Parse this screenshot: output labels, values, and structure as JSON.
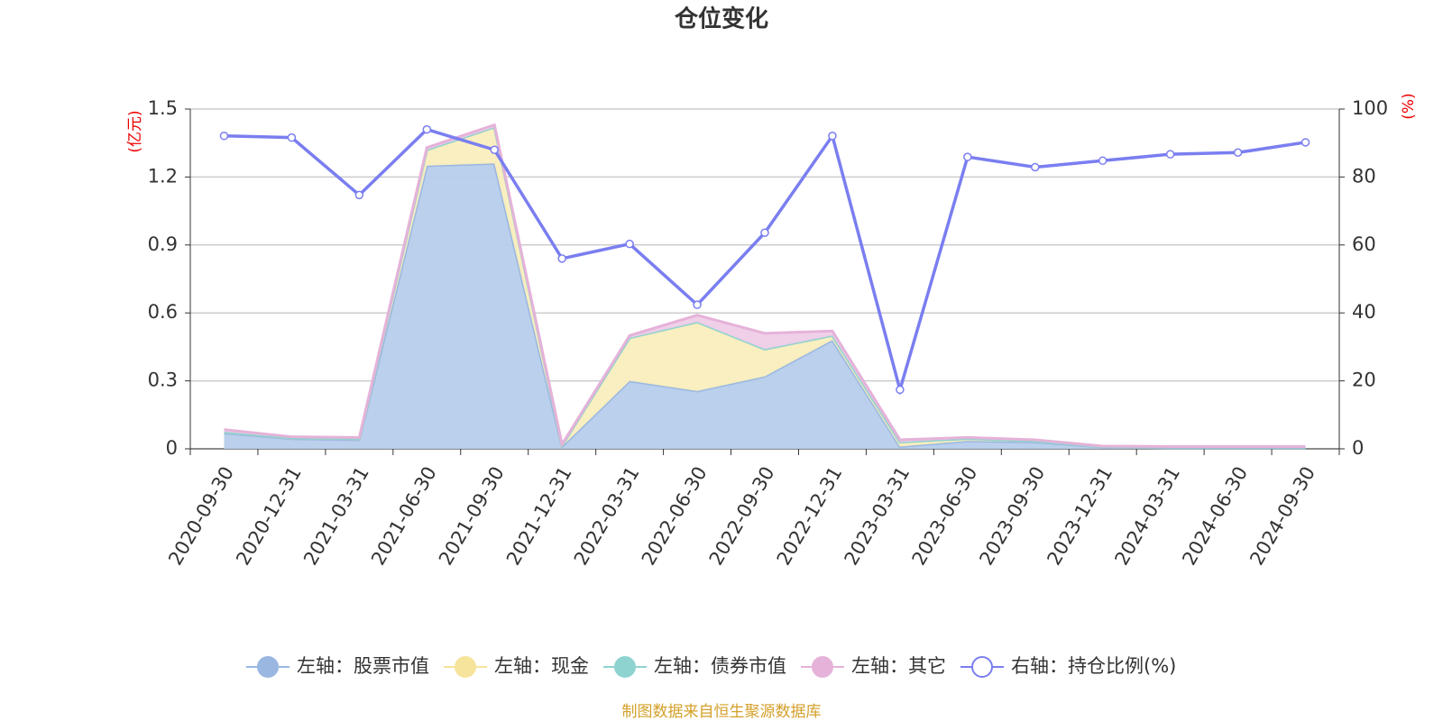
{
  "chart_data": {
    "type": "stacked-area-line",
    "title": "仓位变化",
    "ylabel": "(亿元)",
    "y2label": "(%)",
    "source": "制图数据来自恒生聚源数据库",
    "categories": [
      "2020-09-30",
      "2020-12-31",
      "2021-03-31",
      "2021-06-30",
      "2021-09-30",
      "2021-12-31",
      "2022-03-31",
      "2022-06-30",
      "2022-09-30",
      "2022-12-31",
      "2023-03-31",
      "2023-06-30",
      "2023-09-30",
      "2023-12-31",
      "2024-03-31",
      "2024-06-30",
      "2024-09-30"
    ],
    "series": [
      {
        "name": "左轴：股票市值",
        "color": "#9ab7e2",
        "fill": "#b6cdeb",
        "values": [
          0.07,
          0.045,
          0.04,
          1.25,
          1.26,
          0.01,
          0.3,
          0.255,
          0.32,
          0.48,
          0.01,
          0.035,
          0.03,
          0.008,
          0.005,
          0.005,
          0.005
        ]
      },
      {
        "name": "左轴：现金",
        "color": "#f7e49c",
        "fill": "#faeebd",
        "values": [
          0.005,
          0.003,
          0.005,
          0.07,
          0.16,
          0.005,
          0.19,
          0.305,
          0.12,
          0.02,
          0.02,
          0.01,
          0.005,
          0.002,
          0.003,
          0.003,
          0.003
        ]
      },
      {
        "name": "左轴：债券市值",
        "color": "#8fd3d0",
        "fill": "#b5e3e1",
        "values": [
          0,
          0,
          0,
          0,
          0,
          0,
          0,
          0,
          0,
          0,
          0,
          0,
          0,
          0,
          0,
          0,
          0
        ]
      },
      {
        "name": "左轴：其它",
        "color": "#e5b2d9",
        "fill": "#efcde8",
        "values": [
          0.01,
          0.005,
          0.005,
          0.01,
          0.01,
          0.005,
          0.01,
          0.03,
          0.07,
          0.02,
          0.01,
          0.005,
          0.005,
          0.002,
          0.002,
          0.002,
          0.002
        ]
      },
      {
        "name": "右轴：持仓比例(%)",
        "color": "#7a7ef0",
        "axis": "y2",
        "values": [
          92.1,
          91.6,
          74.7,
          94,
          88,
          56,
          60.3,
          42.4,
          63.6,
          92.1,
          17.4,
          85.9,
          82.9,
          84.8,
          86.7,
          87.2,
          90.2
        ]
      }
    ],
    "ylim": [
      0,
      1.5
    ],
    "yticks": [
      0,
      0.3,
      0.6,
      0.9,
      1.2,
      1.5
    ],
    "y2lim": [
      0,
      100
    ],
    "y2ticks": [
      0,
      20,
      40,
      60,
      80,
      100
    ],
    "grid": true
  }
}
